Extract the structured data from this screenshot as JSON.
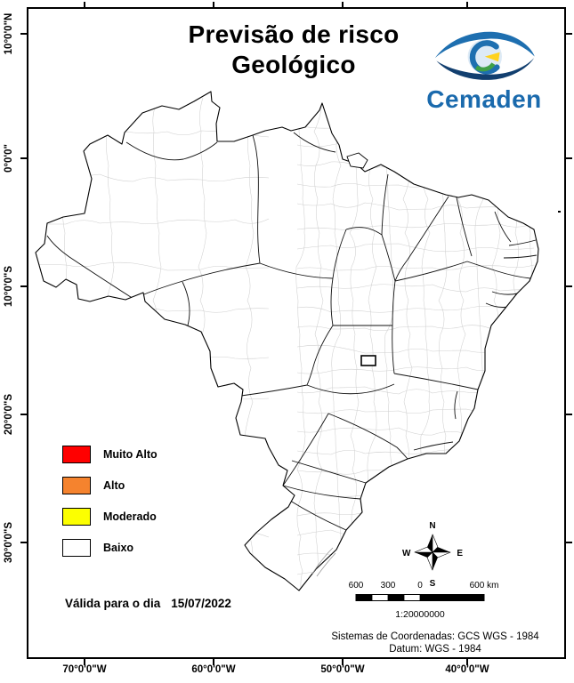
{
  "title": {
    "line1": "Previsão de risco",
    "line2": "Geológico"
  },
  "logo": {
    "wordmark": "Cemaden"
  },
  "legend": {
    "items": [
      {
        "label": "Muito Alto",
        "color": "#ff0000"
      },
      {
        "label": "Alto",
        "color": "#f5832e"
      },
      {
        "label": "Moderado",
        "color": "#fcff00"
      },
      {
        "label": "Baixo",
        "color": "#ffffff"
      }
    ]
  },
  "validity": {
    "label": "Válida para o dia",
    "date": "15/07/2022"
  },
  "compass": {
    "n": "N",
    "s": "S",
    "e": "E",
    "w": "W"
  },
  "scale_bar": {
    "labels": [
      "600",
      "300",
      "0",
      "600 km"
    ],
    "ratio": "1:20000000"
  },
  "footer": {
    "coordinate_system": "Sistemas de Coordenadas: GCS WGS - 1984",
    "datum": "Datum: WGS - 1984"
  },
  "graticule": {
    "lat_labels": [
      "10°0'0\"N",
      "0°0'0\"",
      "10°0'0\"S",
      "20°0'0\"S",
      "30°0'0\"S"
    ],
    "lon_labels": [
      "70°0'0\"W",
      "60°0'0\"W",
      "50°0'0\"W",
      "40°0'0\"W"
    ]
  }
}
